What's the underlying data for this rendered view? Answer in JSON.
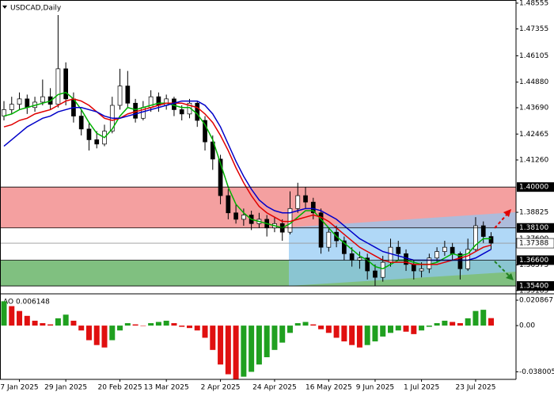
{
  "chart_data": {
    "type": "candlestick",
    "title": "USDCAD,Daily",
    "categories": [
      null,
      null,
      "7 Jan 2025",
      null,
      null,
      null,
      null,
      null,
      "29 Jan 2025",
      null,
      null,
      null,
      null,
      null,
      null,
      "20 Feb 2025",
      null,
      null,
      null,
      null,
      null,
      "13 Mar 2025",
      null,
      null,
      null,
      null,
      null,
      null,
      "2 Apr 2025",
      null,
      null,
      null,
      null,
      null,
      null,
      "24 Apr 2025",
      null,
      null,
      null,
      null,
      null,
      null,
      "16 May 2025",
      null,
      null,
      null,
      null,
      null,
      "9 Jun 2025",
      null,
      null,
      null,
      null,
      null,
      "1 Jul 2025",
      null,
      null,
      null,
      null,
      null,
      null,
      "23 Jul 2025",
      null,
      null
    ],
    "ohlc": [
      [
        1.433,
        1.44,
        1.431,
        1.436
      ],
      [
        1.436,
        1.442,
        1.434,
        1.4385
      ],
      [
        1.4385,
        1.444,
        1.436,
        1.441
      ],
      [
        1.441,
        1.443,
        1.434,
        1.437
      ],
      [
        1.437,
        1.442,
        1.435,
        1.4395
      ],
      [
        1.4395,
        1.45,
        1.438,
        1.442
      ],
      [
        1.442,
        1.446,
        1.436,
        1.4385
      ],
      [
        1.4385,
        1.48,
        1.437,
        1.455
      ],
      [
        1.455,
        1.458,
        1.438,
        1.441
      ],
      [
        1.441,
        1.444,
        1.43,
        1.433
      ],
      [
        1.433,
        1.436,
        1.424,
        1.427
      ],
      [
        1.427,
        1.43,
        1.417,
        1.422
      ],
      [
        1.422,
        1.426,
        1.418,
        1.42
      ],
      [
        1.42,
        1.429,
        1.419,
        1.426
      ],
      [
        1.426,
        1.442,
        1.425,
        1.438
      ],
      [
        1.438,
        1.455,
        1.436,
        1.447
      ],
      [
        1.447,
        1.454,
        1.437,
        1.439
      ],
      [
        1.439,
        1.441,
        1.43,
        1.432
      ],
      [
        1.432,
        1.44,
        1.431,
        1.437
      ],
      [
        1.437,
        1.445,
        1.435,
        1.442
      ],
      [
        1.442,
        1.444,
        1.435,
        1.438
      ],
      [
        1.438,
        1.443,
        1.436,
        1.441
      ],
      [
        1.441,
        1.442,
        1.433,
        1.436
      ],
      [
        1.436,
        1.438,
        1.431,
        1.434
      ],
      [
        1.434,
        1.441,
        1.432,
        1.439
      ],
      [
        1.439,
        1.44,
        1.428,
        1.431
      ],
      [
        1.431,
        1.433,
        1.417,
        1.421
      ],
      [
        1.421,
        1.424,
        1.408,
        1.413
      ],
      [
        1.413,
        1.415,
        1.392,
        1.396
      ],
      [
        1.396,
        1.399,
        1.385,
        1.388
      ],
      [
        1.388,
        1.392,
        1.383,
        1.385
      ],
      [
        1.385,
        1.39,
        1.382,
        1.387
      ],
      [
        1.387,
        1.389,
        1.38,
        1.383
      ],
      [
        1.383,
        1.388,
        1.381,
        1.385
      ],
      [
        1.385,
        1.387,
        1.377,
        1.381
      ],
      [
        1.381,
        1.386,
        1.379,
        1.383
      ],
      [
        1.383,
        1.385,
        1.375,
        1.379
      ],
      [
        1.379,
        1.398,
        1.378,
        1.39
      ],
      [
        1.39,
        1.402,
        1.388,
        1.396
      ],
      [
        1.396,
        1.4,
        1.39,
        1.393
      ],
      [
        1.393,
        1.395,
        1.385,
        1.388
      ],
      [
        1.388,
        1.39,
        1.369,
        1.372
      ],
      [
        1.372,
        1.381,
        1.37,
        1.379
      ],
      [
        1.379,
        1.382,
        1.372,
        1.375
      ],
      [
        1.375,
        1.377,
        1.366,
        1.369
      ],
      [
        1.369,
        1.372,
        1.363,
        1.366
      ],
      [
        1.366,
        1.37,
        1.362,
        1.367
      ],
      [
        1.367,
        1.369,
        1.357,
        1.361
      ],
      [
        1.361,
        1.364,
        1.354,
        1.358
      ],
      [
        1.358,
        1.368,
        1.356,
        1.365
      ],
      [
        1.365,
        1.376,
        1.363,
        1.372
      ],
      [
        1.372,
        1.375,
        1.366,
        1.369
      ],
      [
        1.369,
        1.371,
        1.361,
        1.364
      ],
      [
        1.364,
        1.366,
        1.357,
        1.361
      ],
      [
        1.361,
        1.365,
        1.358,
        1.362
      ],
      [
        1.362,
        1.369,
        1.36,
        1.367
      ],
      [
        1.367,
        1.372,
        1.365,
        1.37
      ],
      [
        1.37,
        1.375,
        1.368,
        1.372
      ],
      [
        1.372,
        1.374,
        1.366,
        1.369
      ],
      [
        1.369,
        1.37,
        1.357,
        1.362
      ],
      [
        1.362,
        1.376,
        1.361,
        1.371
      ],
      [
        1.371,
        1.386,
        1.37,
        1.382
      ],
      [
        1.382,
        1.384,
        1.374,
        1.377
      ],
      [
        1.377,
        1.379,
        1.371,
        1.37388
      ]
    ],
    "up_color": "#ffffff",
    "down_color": "#000000",
    "series": [
      {
        "color": "#00b000",
        "values": [
          1.433,
          1.434,
          1.436,
          1.437,
          1.438,
          1.439,
          1.44,
          1.443,
          1.444,
          1.441,
          1.436,
          1.43,
          1.425,
          1.423,
          1.427,
          1.433,
          1.437,
          1.436,
          1.437,
          1.438,
          1.439,
          1.439,
          1.438,
          1.437,
          1.437,
          1.434,
          1.429,
          1.422,
          1.411,
          1.4,
          1.392,
          1.388,
          1.385,
          1.384,
          1.383,
          1.382,
          1.381,
          1.383,
          1.386,
          1.389,
          1.389,
          1.385,
          1.381,
          1.377,
          1.374,
          1.371,
          1.368,
          1.366,
          1.363,
          1.362,
          1.364,
          1.366,
          1.366,
          1.365,
          1.364,
          1.364,
          1.365,
          1.367,
          1.369,
          1.368,
          1.369,
          1.373,
          1.376,
          1.376
        ]
      },
      {
        "color": "#e00000",
        "values": [
          1.428,
          1.429,
          1.431,
          1.432,
          1.434,
          1.435,
          1.436,
          1.438,
          1.44,
          1.441,
          1.44,
          1.438,
          1.435,
          1.432,
          1.431,
          1.432,
          1.434,
          1.435,
          1.436,
          1.437,
          1.438,
          1.439,
          1.439,
          1.439,
          1.438,
          1.437,
          1.434,
          1.43,
          1.424,
          1.417,
          1.409,
          1.402,
          1.396,
          1.391,
          1.388,
          1.386,
          1.384,
          1.384,
          1.385,
          1.386,
          1.387,
          1.386,
          1.384,
          1.381,
          1.378,
          1.375,
          1.372,
          1.37,
          1.368,
          1.366,
          1.365,
          1.365,
          1.365,
          1.364,
          1.364,
          1.364,
          1.364,
          1.365,
          1.366,
          1.367,
          1.368,
          1.37,
          1.372,
          1.373
        ]
      },
      {
        "color": "#0000c8",
        "values": [
          1.419,
          1.422,
          1.425,
          1.428,
          1.43,
          1.432,
          1.433,
          1.435,
          1.436,
          1.437,
          1.437,
          1.436,
          1.435,
          1.433,
          1.432,
          1.432,
          1.433,
          1.434,
          1.435,
          1.436,
          1.437,
          1.438,
          1.439,
          1.44,
          1.44,
          1.44,
          1.438,
          1.434,
          1.428,
          1.42,
          1.412,
          1.405,
          1.399,
          1.394,
          1.391,
          1.389,
          1.388,
          1.388,
          1.389,
          1.39,
          1.39,
          1.389,
          1.387,
          1.385,
          1.382,
          1.379,
          1.376,
          1.374,
          1.372,
          1.37,
          1.369,
          1.368,
          1.367,
          1.366,
          1.366,
          1.366,
          1.366,
          1.366,
          1.366,
          1.366,
          1.366,
          1.367,
          1.369,
          1.371
        ]
      }
    ],
    "ylim": [
      1.3507,
      1.487
    ],
    "yticks": [
      1.48555,
      1.47355,
      1.46105,
      {
        "value": 1.4488,
        "label": "1.44880"
      },
      {
        "value": 1.4369,
        "label": "1.43690"
      },
      1.42465,
      {
        "value": 1.4126,
        "label": "1.41260"
      },
      1.38825,
      {
        "value": 1.376,
        "label": "1.37600"
      },
      1.36375,
      1.35185
    ],
    "levels": [
      {
        "value": 1.4,
        "label": "1.40000"
      },
      {
        "value": 1.381,
        "label": "1.38100"
      },
      {
        "value": 1.366,
        "label": "1.36600"
      },
      {
        "value": 1.354,
        "label": "1.35400"
      }
    ],
    "current_price": 1.37388,
    "resistance_color": "#f4a0a0",
    "support_color": "#80c080",
    "indicator": {
      "label": "AO 0.006148",
      "up_color": "#20a020",
      "down_color": "#e01010",
      "values": [
        0.02,
        0.016,
        0.012,
        0.008,
        0.004,
        0.002,
        0.001,
        0.006,
        0.009,
        0.004,
        -0.004,
        -0.012,
        -0.016,
        -0.018,
        -0.012,
        -0.004,
        0.002,
        0.001,
        0,
        0.002,
        0.003,
        0.004,
        0.002,
        -0.001,
        -0.002,
        -0.004,
        -0.01,
        -0.02,
        -0.032,
        -0.04,
        -0.044,
        -0.042,
        -0.038,
        -0.032,
        -0.026,
        -0.02,
        -0.014,
        -0.006,
        0.002,
        0.003,
        0.001,
        -0.003,
        -0.006,
        -0.01,
        -0.013,
        -0.016,
        -0.018,
        -0.016,
        -0.013,
        -0.009,
        -0.006,
        -0.004,
        -0.005,
        -0.007,
        -0.004,
        -0.001,
        0.002,
        0.004,
        0.003,
        0.002,
        0.006,
        0.012,
        0.013,
        0.006148
      ],
      "ylim": [
        -0.0442,
        0.0248
      ],
      "yticks": [
        0.020867,
        {
          "value": 0,
          "label": "0.00"
        },
        -0.038005
      ]
    }
  }
}
